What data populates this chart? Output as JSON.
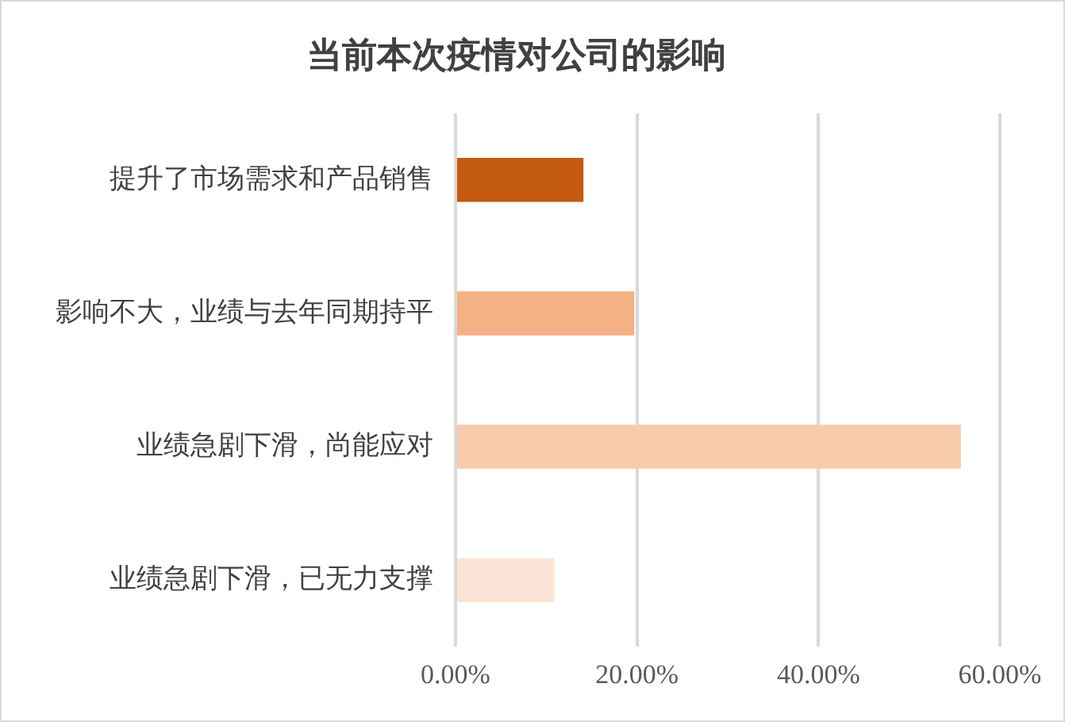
{
  "chart_data": {
    "type": "bar",
    "orientation": "horizontal",
    "title": "当前本次疫情对公司的影响",
    "categories": [
      "提升了市场需求和产品销售",
      "影响不大，业绩与去年同期持平",
      "业绩急剧下滑，尚能应对",
      "业绩急剧下滑，已无力支撑"
    ],
    "values": [
      14.1,
      19.7,
      55.7,
      10.9
    ],
    "colors": [
      "#c55a11",
      "#f4b183",
      "#f8cbad",
      "#fbe5d6"
    ],
    "xlim": [
      0,
      60
    ],
    "xticks": [
      {
        "value": 0,
        "label": "0.00%"
      },
      {
        "value": 20,
        "label": "20.00%"
      },
      {
        "value": 40,
        "label": "40.00%"
      },
      {
        "value": 60,
        "label": "60.00%"
      }
    ],
    "grid": "x",
    "legend": false
  }
}
